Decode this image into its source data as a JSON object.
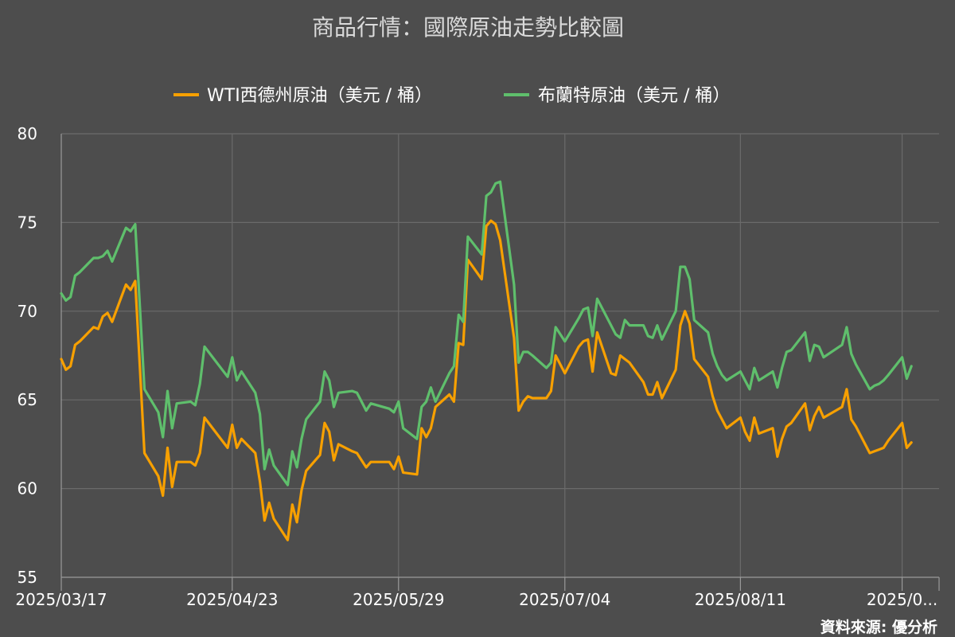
{
  "chart_data": {
    "type": "line",
    "title": "商品行情：國際原油走勢比較圖",
    "xlabel": "",
    "ylabel": "",
    "ylim": [
      55,
      80
    ],
    "yticks": [
      55,
      60,
      65,
      70,
      75,
      80
    ],
    "xlim": [
      "2025-03-17",
      "2025-09-23"
    ],
    "xticks": [
      {
        "date": "2025-03-17",
        "label": "2025/03/17"
      },
      {
        "date": "2025-04-23",
        "label": "2025/04/23"
      },
      {
        "date": "2025-05-29",
        "label": "2025/05/29"
      },
      {
        "date": "2025-07-04",
        "label": "2025/07/04"
      },
      {
        "date": "2025-08-11",
        "label": "2025/08/11"
      },
      {
        "date": "2025-09-15",
        "label": "2025/0..."
      }
    ],
    "grid": true,
    "legend_position": "top",
    "source": "資料來源: 優分析",
    "series": [
      {
        "name": "WTI西德州原油（美元 / 桶）",
        "color": "#f7a000",
        "points": [
          [
            "2025-03-17",
            67.3
          ],
          [
            "2025-03-18",
            66.7
          ],
          [
            "2025-03-19",
            66.9
          ],
          [
            "2025-03-20",
            68.1
          ],
          [
            "2025-03-21",
            68.3
          ],
          [
            "2025-03-24",
            69.1
          ],
          [
            "2025-03-25",
            69.0
          ],
          [
            "2025-03-26",
            69.7
          ],
          [
            "2025-03-27",
            69.9
          ],
          [
            "2025-03-28",
            69.4
          ],
          [
            "2025-03-31",
            71.5
          ],
          [
            "2025-04-01",
            71.2
          ],
          [
            "2025-04-02",
            71.7
          ],
          [
            "2025-04-03",
            66.9
          ],
          [
            "2025-04-04",
            62.0
          ],
          [
            "2025-04-07",
            60.7
          ],
          [
            "2025-04-08",
            59.6
          ],
          [
            "2025-04-09",
            62.3
          ],
          [
            "2025-04-10",
            60.1
          ],
          [
            "2025-04-11",
            61.5
          ],
          [
            "2025-04-14",
            61.5
          ],
          [
            "2025-04-15",
            61.3
          ],
          [
            "2025-04-16",
            62.0
          ],
          [
            "2025-04-17",
            64.0
          ],
          [
            "2025-04-22",
            62.3
          ],
          [
            "2025-04-23",
            63.6
          ],
          [
            "2025-04-24",
            62.3
          ],
          [
            "2025-04-25",
            62.8
          ],
          [
            "2025-04-28",
            62.0
          ],
          [
            "2025-04-29",
            60.4
          ],
          [
            "2025-04-30",
            58.2
          ],
          [
            "2025-05-01",
            59.2
          ],
          [
            "2025-05-02",
            58.3
          ],
          [
            "2025-05-05",
            57.1
          ],
          [
            "2025-05-06",
            59.1
          ],
          [
            "2025-05-07",
            58.1
          ],
          [
            "2025-05-08",
            59.9
          ],
          [
            "2025-05-09",
            61.0
          ],
          [
            "2025-05-12",
            61.9
          ],
          [
            "2025-05-13",
            63.7
          ],
          [
            "2025-05-14",
            63.2
          ],
          [
            "2025-05-15",
            61.6
          ],
          [
            "2025-05-16",
            62.5
          ],
          [
            "2025-05-19",
            62.1
          ],
          [
            "2025-05-20",
            62.0
          ],
          [
            "2025-05-21",
            61.6
          ],
          [
            "2025-05-22",
            61.2
          ],
          [
            "2025-05-23",
            61.5
          ],
          [
            "2025-05-27",
            61.5
          ],
          [
            "2025-05-28",
            61.1
          ],
          [
            "2025-05-29",
            61.8
          ],
          [
            "2025-05-30",
            60.9
          ],
          [
            "2025-06-02",
            60.8
          ],
          [
            "2025-06-03",
            63.4
          ],
          [
            "2025-06-04",
            62.9
          ],
          [
            "2025-06-05",
            63.4
          ],
          [
            "2025-06-06",
            64.6
          ],
          [
            "2025-06-09",
            65.3
          ],
          [
            "2025-06-10",
            64.9
          ],
          [
            "2025-06-11",
            68.2
          ],
          [
            "2025-06-12",
            68.1
          ],
          [
            "2025-06-13",
            72.9
          ],
          [
            "2025-06-16",
            71.8
          ],
          [
            "2025-06-17",
            74.8
          ],
          [
            "2025-06-18",
            75.1
          ],
          [
            "2025-06-19",
            74.9
          ],
          [
            "2025-06-20",
            74.0
          ],
          [
            "2025-06-23",
            68.5
          ],
          [
            "2025-06-24",
            64.4
          ],
          [
            "2025-06-25",
            64.9
          ],
          [
            "2025-06-26",
            65.2
          ],
          [
            "2025-06-27",
            65.1
          ],
          [
            "2025-06-30",
            65.1
          ],
          [
            "2025-07-01",
            65.5
          ],
          [
            "2025-07-02",
            67.5
          ],
          [
            "2025-07-03",
            67.0
          ],
          [
            "2025-07-04",
            66.5
          ],
          [
            "2025-07-07",
            68.0
          ],
          [
            "2025-07-08",
            68.3
          ],
          [
            "2025-07-09",
            68.4
          ],
          [
            "2025-07-10",
            66.6
          ],
          [
            "2025-07-11",
            68.8
          ],
          [
            "2025-07-14",
            66.5
          ],
          [
            "2025-07-15",
            66.4
          ],
          [
            "2025-07-16",
            67.5
          ],
          [
            "2025-07-17",
            67.3
          ],
          [
            "2025-07-18",
            67.1
          ],
          [
            "2025-07-21",
            66.0
          ],
          [
            "2025-07-22",
            65.3
          ],
          [
            "2025-07-23",
            65.3
          ],
          [
            "2025-07-24",
            66.0
          ],
          [
            "2025-07-25",
            65.1
          ],
          [
            "2025-07-28",
            66.7
          ],
          [
            "2025-07-29",
            69.2
          ],
          [
            "2025-07-30",
            70.0
          ],
          [
            "2025-07-31",
            69.3
          ],
          [
            "2025-08-01",
            67.3
          ],
          [
            "2025-08-04",
            66.3
          ],
          [
            "2025-08-05",
            65.2
          ],
          [
            "2025-08-06",
            64.4
          ],
          [
            "2025-08-07",
            63.9
          ],
          [
            "2025-08-08",
            63.4
          ],
          [
            "2025-08-11",
            64.0
          ],
          [
            "2025-08-12",
            63.2
          ],
          [
            "2025-08-13",
            62.7
          ],
          [
            "2025-08-14",
            64.0
          ],
          [
            "2025-08-15",
            63.1
          ],
          [
            "2025-08-18",
            63.4
          ],
          [
            "2025-08-19",
            61.8
          ],
          [
            "2025-08-20",
            62.8
          ],
          [
            "2025-08-21",
            63.5
          ],
          [
            "2025-08-22",
            63.7
          ],
          [
            "2025-08-25",
            64.8
          ],
          [
            "2025-08-26",
            63.3
          ],
          [
            "2025-08-27",
            64.1
          ],
          [
            "2025-08-28",
            64.6
          ],
          [
            "2025-08-29",
            64.0
          ],
          [
            "2025-09-02",
            64.6
          ],
          [
            "2025-09-03",
            65.6
          ],
          [
            "2025-09-04",
            63.9
          ],
          [
            "2025-09-05",
            63.5
          ],
          [
            "2025-09-08",
            62.0
          ],
          [
            "2025-09-09",
            62.1
          ],
          [
            "2025-09-10",
            62.2
          ],
          [
            "2025-09-11",
            62.3
          ],
          [
            "2025-09-12",
            62.7
          ],
          [
            "2025-09-15",
            63.7
          ],
          [
            "2025-09-16",
            62.3
          ],
          [
            "2025-09-17",
            62.6
          ]
        ]
      },
      {
        "name": "布蘭特原油（美元 / 桶）",
        "color": "#5fbf6c",
        "points": [
          [
            "2025-03-17",
            71.0
          ],
          [
            "2025-03-18",
            70.6
          ],
          [
            "2025-03-19",
            70.8
          ],
          [
            "2025-03-20",
            72.0
          ],
          [
            "2025-03-21",
            72.2
          ],
          [
            "2025-03-24",
            73.0
          ],
          [
            "2025-03-25",
            73.0
          ],
          [
            "2025-03-26",
            73.1
          ],
          [
            "2025-03-27",
            73.4
          ],
          [
            "2025-03-28",
            72.8
          ],
          [
            "2025-03-31",
            74.7
          ],
          [
            "2025-04-01",
            74.5
          ],
          [
            "2025-04-02",
            74.9
          ],
          [
            "2025-04-03",
            70.3
          ],
          [
            "2025-04-04",
            65.6
          ],
          [
            "2025-04-07",
            64.3
          ],
          [
            "2025-04-08",
            62.9
          ],
          [
            "2025-04-09",
            65.5
          ],
          [
            "2025-04-10",
            63.4
          ],
          [
            "2025-04-11",
            64.8
          ],
          [
            "2025-04-14",
            64.9
          ],
          [
            "2025-04-15",
            64.7
          ],
          [
            "2025-04-16",
            65.9
          ],
          [
            "2025-04-17",
            68.0
          ],
          [
            "2025-04-22",
            66.3
          ],
          [
            "2025-04-23",
            67.4
          ],
          [
            "2025-04-24",
            66.1
          ],
          [
            "2025-04-25",
            66.6
          ],
          [
            "2025-04-28",
            65.4
          ],
          [
            "2025-04-29",
            64.2
          ],
          [
            "2025-04-30",
            61.1
          ],
          [
            "2025-05-01",
            62.2
          ],
          [
            "2025-05-02",
            61.3
          ],
          [
            "2025-05-05",
            60.2
          ],
          [
            "2025-05-06",
            62.1
          ],
          [
            "2025-05-07",
            61.2
          ],
          [
            "2025-05-08",
            62.8
          ],
          [
            "2025-05-09",
            63.9
          ],
          [
            "2025-05-12",
            64.9
          ],
          [
            "2025-05-13",
            66.6
          ],
          [
            "2025-05-14",
            66.1
          ],
          [
            "2025-05-15",
            64.6
          ],
          [
            "2025-05-16",
            65.4
          ],
          [
            "2025-05-19",
            65.5
          ],
          [
            "2025-05-20",
            65.4
          ],
          [
            "2025-05-21",
            64.9
          ],
          [
            "2025-05-22",
            64.4
          ],
          [
            "2025-05-23",
            64.8
          ],
          [
            "2025-05-27",
            64.5
          ],
          [
            "2025-05-28",
            64.3
          ],
          [
            "2025-05-29",
            64.9
          ],
          [
            "2025-05-30",
            63.4
          ],
          [
            "2025-06-02",
            62.8
          ],
          [
            "2025-06-03",
            64.6
          ],
          [
            "2025-06-04",
            64.9
          ],
          [
            "2025-06-05",
            65.7
          ],
          [
            "2025-06-06",
            64.9
          ],
          [
            "2025-06-09",
            66.5
          ],
          [
            "2025-06-10",
            66.9
          ],
          [
            "2025-06-11",
            69.8
          ],
          [
            "2025-06-12",
            69.4
          ],
          [
            "2025-06-13",
            74.2
          ],
          [
            "2025-06-16",
            73.2
          ],
          [
            "2025-06-17",
            76.5
          ],
          [
            "2025-06-18",
            76.7
          ],
          [
            "2025-06-19",
            77.2
          ],
          [
            "2025-06-20",
            77.3
          ],
          [
            "2025-06-23",
            71.5
          ],
          [
            "2025-06-24",
            67.1
          ],
          [
            "2025-06-25",
            67.7
          ],
          [
            "2025-06-26",
            67.7
          ],
          [
            "2025-06-27",
            67.5
          ],
          [
            "2025-06-30",
            66.8
          ],
          [
            "2025-07-01",
            67.1
          ],
          [
            "2025-07-02",
            69.1
          ],
          [
            "2025-07-03",
            68.7
          ],
          [
            "2025-07-04",
            68.3
          ],
          [
            "2025-07-07",
            69.6
          ],
          [
            "2025-07-08",
            70.1
          ],
          [
            "2025-07-09",
            70.2
          ],
          [
            "2025-07-10",
            68.6
          ],
          [
            "2025-07-11",
            70.7
          ],
          [
            "2025-07-14",
            69.2
          ],
          [
            "2025-07-15",
            68.7
          ],
          [
            "2025-07-16",
            68.5
          ],
          [
            "2025-07-17",
            69.5
          ],
          [
            "2025-07-18",
            69.2
          ],
          [
            "2025-07-21",
            69.2
          ],
          [
            "2025-07-22",
            68.6
          ],
          [
            "2025-07-23",
            68.5
          ],
          [
            "2025-07-24",
            69.2
          ],
          [
            "2025-07-25",
            68.4
          ],
          [
            "2025-07-28",
            70.0
          ],
          [
            "2025-07-29",
            72.5
          ],
          [
            "2025-07-30",
            72.5
          ],
          [
            "2025-07-31",
            71.8
          ],
          [
            "2025-08-01",
            69.5
          ],
          [
            "2025-08-04",
            68.8
          ],
          [
            "2025-08-05",
            67.6
          ],
          [
            "2025-08-06",
            66.9
          ],
          [
            "2025-08-07",
            66.4
          ],
          [
            "2025-08-08",
            66.1
          ],
          [
            "2025-08-11",
            66.6
          ],
          [
            "2025-08-12",
            66.1
          ],
          [
            "2025-08-13",
            65.6
          ],
          [
            "2025-08-14",
            66.8
          ],
          [
            "2025-08-15",
            66.1
          ],
          [
            "2025-08-18",
            66.6
          ],
          [
            "2025-08-19",
            65.7
          ],
          [
            "2025-08-20",
            66.8
          ],
          [
            "2025-08-21",
            67.7
          ],
          [
            "2025-08-22",
            67.8
          ],
          [
            "2025-08-25",
            68.8
          ],
          [
            "2025-08-26",
            67.2
          ],
          [
            "2025-08-27",
            68.1
          ],
          [
            "2025-08-28",
            68.0
          ],
          [
            "2025-08-29",
            67.4
          ],
          [
            "2025-09-02",
            68.1
          ],
          [
            "2025-09-03",
            69.1
          ],
          [
            "2025-09-04",
            67.6
          ],
          [
            "2025-09-05",
            67.0
          ],
          [
            "2025-09-08",
            65.6
          ],
          [
            "2025-09-09",
            65.8
          ],
          [
            "2025-09-10",
            65.9
          ],
          [
            "2025-09-11",
            66.1
          ],
          [
            "2025-09-12",
            66.4
          ],
          [
            "2025-09-15",
            67.4
          ],
          [
            "2025-09-16",
            66.2
          ],
          [
            "2025-09-17",
            66.9
          ]
        ]
      }
    ]
  }
}
